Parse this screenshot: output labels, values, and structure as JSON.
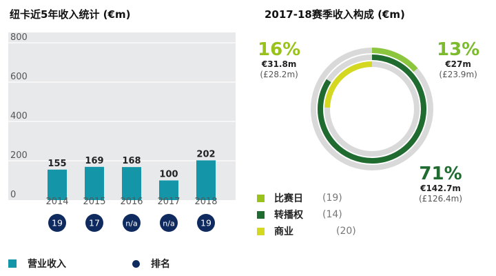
{
  "bar_title": "纽卡近5年收入统计 (€m)",
  "ring_title": "2017-18赛季收入构成 (€m)",
  "colors": {
    "bar": "#1496a8",
    "rank": "#0f2a5e",
    "grid_bg": "#e7e9ea",
    "track": "#d9d9d9",
    "matchday": "#9ac21c",
    "broadcasting": "#1f6b30",
    "commercial": "#d4d821"
  },
  "chart_data": [
    {
      "type": "bar",
      "title": "纽卡近5年收入统计 (€m)",
      "categories": [
        "2014",
        "2015",
        "2016",
        "2017",
        "2018"
      ],
      "values": [
        155,
        169,
        168,
        100,
        202
      ],
      "value_labels": [
        "155",
        "169",
        "168",
        "100",
        "202"
      ],
      "yticks": [
        "0",
        "200",
        "400",
        "600",
        "800"
      ],
      "ylim": [
        0,
        800
      ],
      "ranks": [
        "19",
        "17",
        "n/a",
        "n/a",
        "19"
      ],
      "legend": {
        "revenue": "营业收入",
        "rank": "排名"
      }
    },
    {
      "type": "pie",
      "title": "2017-18赛季收入构成 (€m)",
      "segments": [
        {
          "name": "比赛日",
          "rank": "(19)",
          "pct": "16%",
          "value": 31.8,
          "eur": "€31.8m",
          "gbp": "(£28.2m)"
        },
        {
          "name": "转播权",
          "rank": "(14)",
          "pct": "71%",
          "value": 142.7,
          "eur": "€142.7m",
          "gbp": "(£126.4m)"
        },
        {
          "name": "商业",
          "rank": "(20)",
          "pct": "13%",
          "value": 27,
          "eur": "€27m",
          "gbp": "(£23.9m)"
        }
      ]
    }
  ]
}
